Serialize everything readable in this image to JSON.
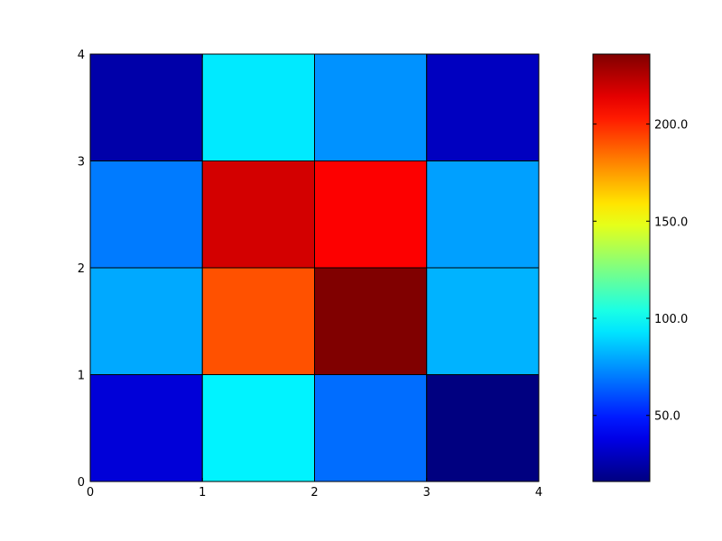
{
  "chart_data": {
    "type": "heatmap",
    "title": "",
    "xlabel": "",
    "ylabel": "",
    "x_edges": [
      0,
      1,
      2,
      3,
      4
    ],
    "y_edges": [
      0,
      1,
      2,
      3,
      4
    ],
    "xlim": [
      0,
      4
    ],
    "ylim": [
      0,
      4
    ],
    "x_tick_labels": [
      "0",
      "1",
      "2",
      "3",
      "4"
    ],
    "y_tick_labels": [
      "0",
      "1",
      "2",
      "3",
      "4"
    ],
    "colormap": "jet",
    "clim": [
      16,
      236
    ],
    "colorbar_ticks": [
      50.0,
      100.0,
      150.0,
      200.0
    ],
    "colorbar_tick_labels": [
      "50.0",
      "100.0",
      "150.0",
      "200.0"
    ],
    "rows_bottom_to_top": [
      [
        35,
        96,
        67,
        16
      ],
      [
        80,
        191,
        236,
        82
      ],
      [
        70,
        218,
        209,
        78
      ],
      [
        25,
        94,
        75,
        30
      ]
    ],
    "cell_edge_color": "#000000",
    "grid": false
  }
}
